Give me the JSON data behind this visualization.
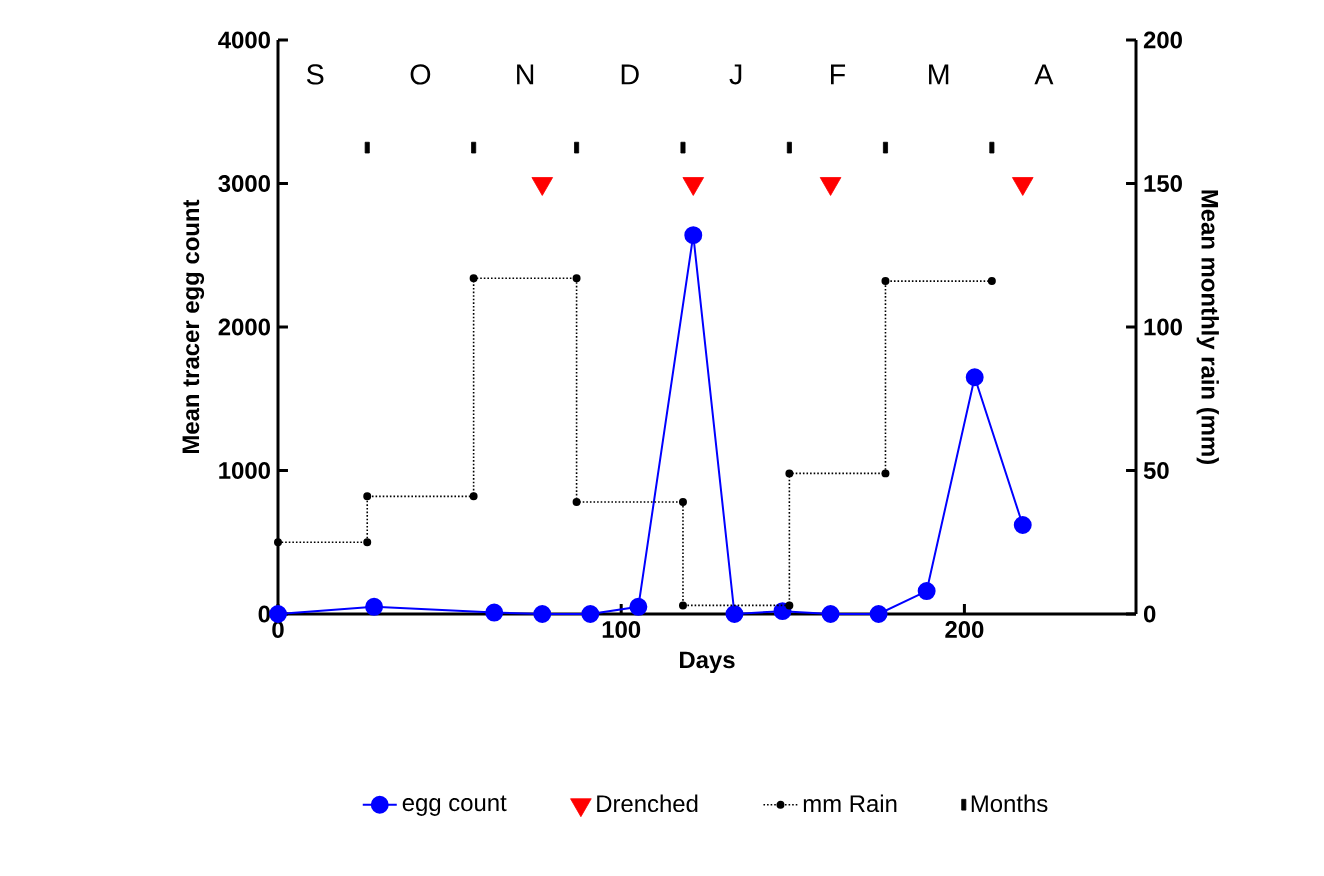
{
  "chart_data": {
    "type": "line",
    "xlabel": "Days",
    "ylabel": "Mean tracer egg count",
    "y2label": "Mean monthly rain (mm)",
    "xlim": [
      0,
      250
    ],
    "xticks": [
      0,
      100,
      200
    ],
    "ylim": [
      0,
      4000
    ],
    "yticks": [
      0,
      1000,
      2000,
      3000,
      4000
    ],
    "y2lim": [
      0,
      200
    ],
    "y2ticks": [
      0,
      50,
      100,
      150,
      200
    ],
    "legend": "bottom",
    "grid": false,
    "annotations": [
      "S",
      "O",
      "N",
      "D",
      "J",
      "F",
      "M",
      "A"
    ],
    "series": [
      {
        "name": "egg count",
        "color": "#0000ff",
        "marker": "circle",
        "line_style": "solid",
        "x": [
          0,
          28,
          63,
          77,
          91,
          105,
          121,
          133,
          147,
          161,
          175,
          189,
          203,
          217
        ],
        "values": [
          0,
          50,
          10,
          0,
          0,
          50,
          2640,
          0,
          20,
          0,
          0,
          160,
          1650,
          620
        ]
      },
      {
        "name": "Drenched",
        "type": "scatter",
        "color": "#ff0000",
        "marker": "triangle",
        "x": [
          77,
          121,
          161,
          217
        ],
        "values": [
          3000,
          3000,
          3000,
          3000
        ]
      },
      {
        "name": "mm Rain",
        "axis": "y2",
        "color": "#000000",
        "marker": "circle",
        "line_style": "dotted",
        "x": [
          0,
          26,
          26,
          57,
          57,
          87,
          87,
          118,
          118,
          149,
          149,
          177,
          177,
          208
        ],
        "values": [
          25,
          25,
          41,
          41,
          117,
          117,
          39,
          39,
          3,
          3,
          49,
          49,
          116,
          116
        ]
      },
      {
        "name": "Months",
        "type": "scatter",
        "color": "#000000",
        "marker": "square",
        "x": [
          26,
          57,
          87,
          118,
          149,
          177,
          208
        ],
        "values": [
          3250,
          3250,
          3250,
          3250,
          3250,
          3250,
          3250
        ]
      }
    ]
  }
}
